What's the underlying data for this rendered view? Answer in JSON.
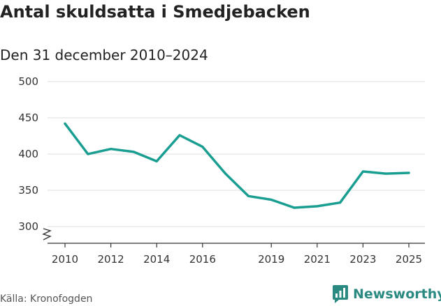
{
  "header": {
    "title": "Antal skuldsatta i Smedjebacken",
    "subtitle": "Den 31 december 2010–2024"
  },
  "footer": {
    "source": "Källa: Kronofogden",
    "brand": "Newsworthy"
  },
  "colors": {
    "line": "#1a9e92",
    "grid": "#dcdcdc",
    "axis": "#333333",
    "brand": "#2a8a82"
  },
  "chart_data": {
    "type": "line",
    "title": "Antal skuldsatta i Smedjebacken",
    "subtitle": "Den 31 december 2010–2024",
    "xlabel": "",
    "ylabel": "",
    "ylim": [
      280,
      500
    ],
    "y_ticks": [
      300,
      350,
      400,
      450,
      500
    ],
    "x_range": [
      2009.6,
      2025.6
    ],
    "x_ticks": [
      2010,
      2012,
      2014,
      2016,
      2019,
      2021,
      2023,
      2025
    ],
    "axis_break": true,
    "grid": true,
    "series": [
      {
        "name": "Antal skuldsatta",
        "x": [
          2010,
          2011,
          2012,
          2013,
          2014,
          2015,
          2016,
          2017,
          2018,
          2019,
          2020,
          2021,
          2022,
          2023,
          2024,
          2025
        ],
        "values": [
          442,
          400,
          407,
          403,
          390,
          426,
          410,
          373,
          342,
          337,
          326,
          328,
          333,
          376,
          373,
          374
        ]
      }
    ]
  }
}
